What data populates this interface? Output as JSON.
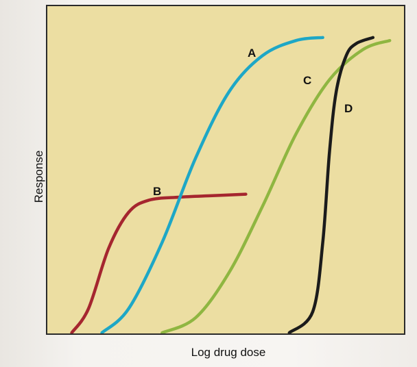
{
  "chart_data": {
    "type": "line",
    "title": "",
    "xlabel": "Log drug dose",
    "ylabel": "Response",
    "xlim": [
      0,
      100
    ],
    "ylim": [
      0,
      100
    ],
    "grid": false,
    "legend": "none",
    "series": [
      {
        "name": "A",
        "color": "#1ea7c6",
        "x": [
          12,
          20,
          30,
          40,
          50,
          60,
          70,
          78
        ],
        "y": [
          0,
          8,
          30,
          58,
          80,
          92,
          97,
          98
        ]
      },
      {
        "name": "B",
        "color": "#a5262f",
        "x": [
          3,
          8,
          14,
          20,
          26,
          35,
          45,
          55
        ],
        "y": [
          0,
          8,
          28,
          40,
          44,
          45,
          45.5,
          46
        ]
      },
      {
        "name": "C",
        "color": "#8fb641",
        "x": [
          30,
          40,
          50,
          60,
          70,
          80,
          90,
          98
        ],
        "y": [
          0,
          5,
          20,
          42,
          66,
          84,
          94,
          97
        ]
      },
      {
        "name": "D",
        "color": "#1b1b1b",
        "x": [
          68,
          75,
          78,
          80,
          82,
          85,
          88,
          93
        ],
        "y": [
          0,
          7,
          30,
          60,
          80,
          92,
          96,
          98
        ]
      }
    ]
  },
  "labels": {
    "xaxis": "Log drug dose",
    "yaxis": "Response",
    "curve_a": "A",
    "curve_b": "B",
    "curve_c": "C",
    "curve_d": "D"
  },
  "colors": {
    "plot_bg": "#ecdea2",
    "frame": "#2a2a2a"
  }
}
